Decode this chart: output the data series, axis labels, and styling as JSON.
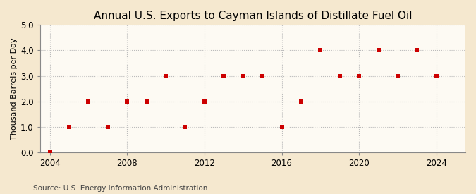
{
  "title": "Annual U.S. Exports to Cayman Islands of Distillate Fuel Oil",
  "ylabel": "Thousand Barrels per Day",
  "source_text": "Source: U.S. Energy Information Administration",
  "background_color": "#f5e8cf",
  "plot_bg_color": "#fdfaf3",
  "years": [
    2004,
    2005,
    2006,
    2007,
    2008,
    2009,
    2010,
    2011,
    2012,
    2013,
    2014,
    2015,
    2016,
    2017,
    2018,
    2019,
    2020,
    2021,
    2022,
    2023,
    2024
  ],
  "values": [
    0.0,
    1.0,
    2.0,
    1.0,
    2.0,
    2.0,
    3.0,
    1.0,
    2.0,
    3.0,
    3.0,
    3.0,
    1.0,
    2.0,
    4.0,
    3.0,
    3.0,
    4.0,
    3.0,
    4.0,
    3.0
  ],
  "marker_color": "#cc0000",
  "marker_size": 4,
  "grid_color": "#bbbbbb",
  "xlim": [
    2003.5,
    2025.5
  ],
  "ylim": [
    0.0,
    5.0
  ],
  "yticks": [
    0.0,
    1.0,
    2.0,
    3.0,
    4.0,
    5.0
  ],
  "xticks": [
    2004,
    2008,
    2012,
    2016,
    2020,
    2024
  ],
  "title_fontsize": 11,
  "label_fontsize": 8,
  "tick_fontsize": 8.5,
  "source_fontsize": 7.5
}
